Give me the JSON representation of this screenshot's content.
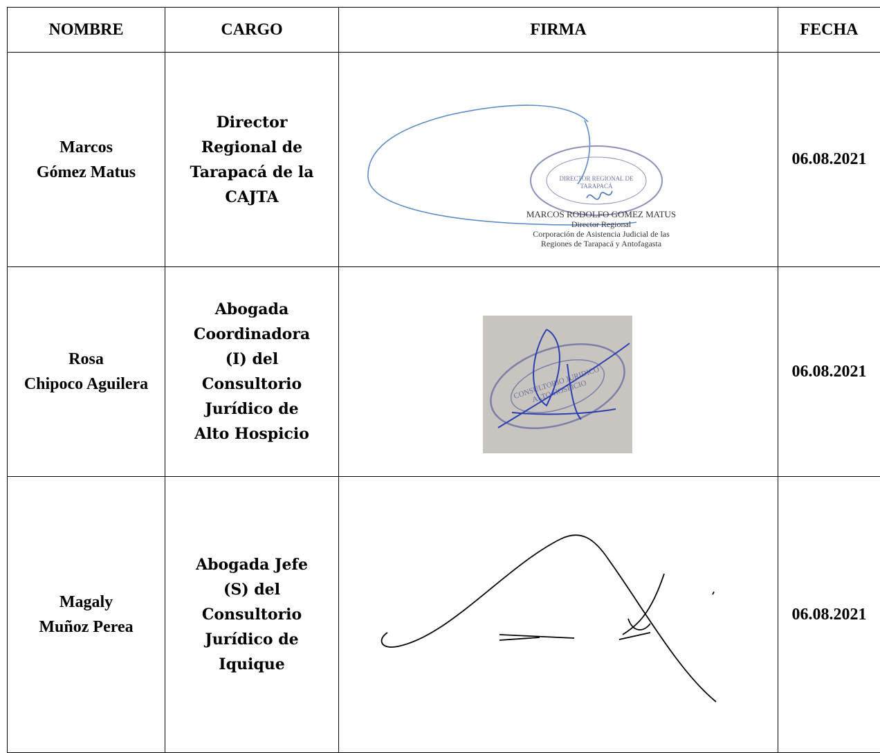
{
  "table": {
    "header": [
      "NOMBRE",
      "CARGO",
      "FIRMA",
      "FECHA"
    ],
    "rows": [
      {
        "nombre": [
          "Marcos",
          "Gómez Matus"
        ],
        "cargo": [
          "Director",
          "Regional de",
          "Tarapacá de la",
          "CAJTA"
        ],
        "firma": {
          "stamp": [
            "DIRECTOR REGIONAL DE",
            "TARAPACÁ"
          ],
          "lines": [
            "MARCOS RODOLFO GOMEZ MATUS",
            "Director Regional",
            "Corporación de Asistencia Judicial de las",
            "Regiones de Tarapacá y Antofagasta"
          ]
        },
        "fecha": "06.08.2021"
      },
      {
        "nombre": [
          "Rosa",
          "Chipoco Aguilera"
        ],
        "cargo": [
          "Abogada",
          "Coordinadora",
          "(I) del",
          "Consultorio",
          "Jurídico de",
          "Alto Hospicio"
        ],
        "firma": {
          "stamp": [
            "CONSULTORIO JURIDICO",
            "ALTO HOSPICIO"
          ]
        },
        "fecha": "06.08.2021"
      },
      {
        "nombre": [
          "Magaly",
          "Muñoz Perea"
        ],
        "cargo": [
          "Abogada Jefe",
          "(S) del",
          "Consultorio",
          "Jurídico de",
          "Iquique"
        ],
        "fecha": "06.08.2021"
      }
    ]
  }
}
